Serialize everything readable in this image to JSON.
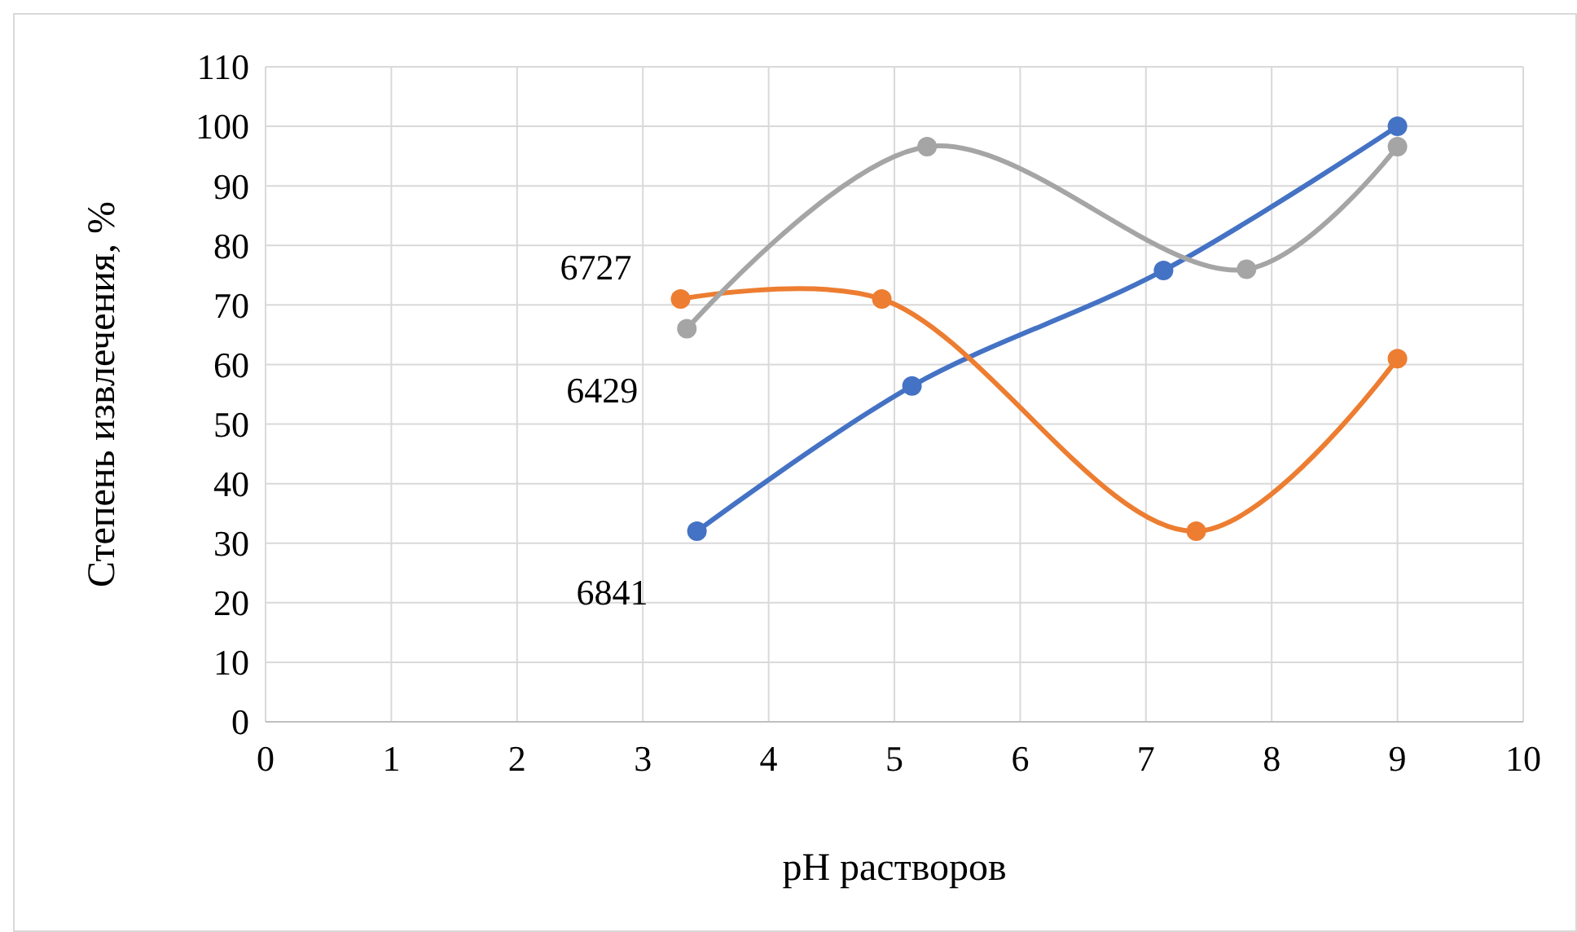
{
  "chart_data": {
    "type": "line",
    "xlabel": "pH растворов",
    "ylabel": "Степень извлечения, %",
    "xlim": [
      0,
      10
    ],
    "xticks": [
      0,
      1,
      2,
      3,
      4,
      5,
      6,
      7,
      8,
      9,
      10
    ],
    "ylim": [
      0,
      110
    ],
    "yticks": [
      0,
      10,
      20,
      30,
      40,
      50,
      60,
      70,
      80,
      90,
      100,
      110
    ],
    "grid": true,
    "legend": false,
    "marker": "circle",
    "line_style": "solid",
    "series": [
      {
        "name": "6841",
        "color": "#4472c4",
        "x": [
          3.43,
          5.14,
          7.14,
          9.0
        ],
        "values": [
          32,
          56.4,
          75.8,
          100
        ]
      },
      {
        "name": "6727",
        "color": "#ed7d31",
        "x": [
          3.3,
          4.9,
          7.4,
          9.0
        ],
        "values": [
          71,
          71,
          32,
          61
        ]
      },
      {
        "name": "6429",
        "color": "#a5a5a5",
        "x": [
          3.35,
          5.26,
          7.8,
          9.0
        ],
        "values": [
          66,
          96.6,
          76,
          96.6
        ]
      }
    ]
  }
}
